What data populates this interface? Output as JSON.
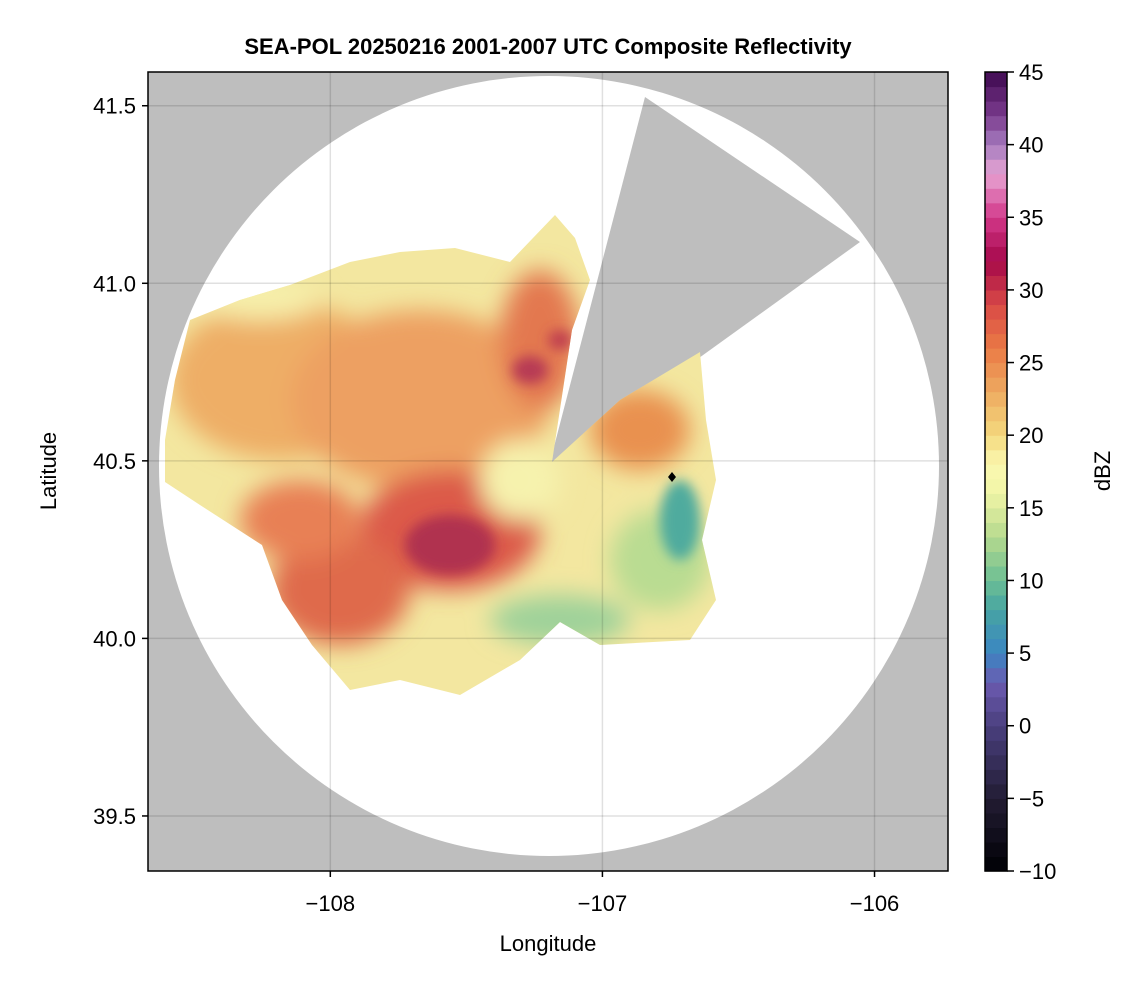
{
  "chart_data": {
    "type": "heatmap",
    "title": "SEA-POL 20250216 2001-2007 UTC Composite Reflectivity",
    "xlabel": "Longitude",
    "ylabel": "Latitude",
    "xlim": [
      -108.67,
      -105.73
    ],
    "ylim": [
      39.345,
      41.595
    ],
    "xticks": [
      -108,
      -107,
      -106
    ],
    "xtick_labels": [
      "−108",
      "−107",
      "−106"
    ],
    "yticks": [
      39.5,
      40.0,
      40.5,
      41.0,
      41.5
    ],
    "ytick_labels": [
      "39.5",
      "40.0",
      "40.5",
      "41.0",
      "41.5"
    ],
    "grid": true,
    "background_color": "#bebebe",
    "coverage_color": "#ffffff",
    "radar_center": {
      "lon": -107.2,
      "lat": 40.48
    },
    "marker": {
      "lon": -106.75,
      "lat": 40.455,
      "shape": "diamond",
      "color": "#000000"
    },
    "colorbar": {
      "label": "dBZ",
      "range": [
        -10,
        45
      ],
      "step": 1,
      "ticks": [
        -10,
        -5,
        0,
        5,
        10,
        15,
        20,
        25,
        30,
        35,
        40,
        45
      ],
      "tick_labels": [
        "−10",
        "−5",
        "0",
        "5",
        "10",
        "15",
        "20",
        "25",
        "30",
        "35",
        "40",
        "45"
      ],
      "stops": [
        [
          -10,
          "#000004"
        ],
        [
          -5,
          "#221c33"
        ],
        [
          0,
          "#4a3f7e"
        ],
        [
          3,
          "#6b5bb0"
        ],
        [
          5,
          "#3b86c2"
        ],
        [
          8,
          "#47a4a3"
        ],
        [
          10,
          "#6cbf94"
        ],
        [
          13,
          "#b5d98e"
        ],
        [
          16,
          "#f0f5a6"
        ],
        [
          18,
          "#fbf8b1"
        ],
        [
          20,
          "#f4d97e"
        ],
        [
          23,
          "#eeaa60"
        ],
        [
          26,
          "#ea7a45"
        ],
        [
          29,
          "#d94a46"
        ],
        [
          32,
          "#a5084a"
        ],
        [
          35,
          "#d2388a"
        ],
        [
          38,
          "#e7a4d3"
        ],
        [
          40,
          "#a57cbf"
        ],
        [
          42,
          "#7b3c8e"
        ],
        [
          45,
          "#3e0850"
        ]
      ]
    }
  }
}
